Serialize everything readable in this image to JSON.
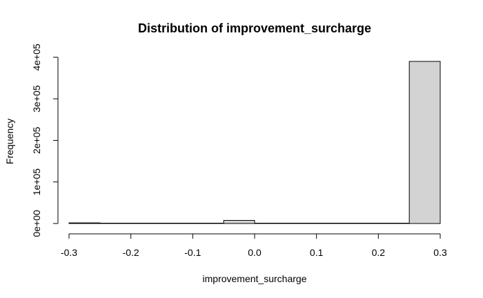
{
  "chart_data": {
    "type": "bar",
    "title": "Distribution of improvement_surcharge",
    "xlabel": "improvement_surcharge",
    "ylabel": "Frequency",
    "xlim": [
      -0.3,
      0.3
    ],
    "ylim": [
      0,
      400000
    ],
    "x_ticks": [
      -0.3,
      -0.2,
      -0.1,
      0.0,
      0.1,
      0.2,
      0.3
    ],
    "x_tick_labels": [
      "-0.3",
      "-0.2",
      "-0.1",
      "0.0",
      "0.1",
      "0.2",
      "0.3"
    ],
    "y_ticks": [
      0,
      100000,
      200000,
      300000,
      400000
    ],
    "y_tick_labels": [
      "0e+00",
      "1e+05",
      "2e+05",
      "3e+05",
      "4e+05"
    ],
    "bins": [
      {
        "from": -0.3,
        "to": -0.25,
        "count": 1500
      },
      {
        "from": -0.25,
        "to": -0.2,
        "count": 0
      },
      {
        "from": -0.2,
        "to": -0.15,
        "count": 0
      },
      {
        "from": -0.15,
        "to": -0.1,
        "count": 0
      },
      {
        "from": -0.1,
        "to": -0.05,
        "count": 0
      },
      {
        "from": -0.05,
        "to": 0.0,
        "count": 7500
      },
      {
        "from": 0.0,
        "to": 0.05,
        "count": 0
      },
      {
        "from": 0.05,
        "to": 0.1,
        "count": 0
      },
      {
        "from": 0.1,
        "to": 0.15,
        "count": 0
      },
      {
        "from": 0.15,
        "to": 0.2,
        "count": 0
      },
      {
        "from": 0.2,
        "to": 0.25,
        "count": 0
      },
      {
        "from": 0.25,
        "to": 0.3,
        "count": 390000
      }
    ],
    "bar_fill": "#d3d3d3",
    "bar_stroke": "#000000",
    "grid": false,
    "legend": "none"
  }
}
